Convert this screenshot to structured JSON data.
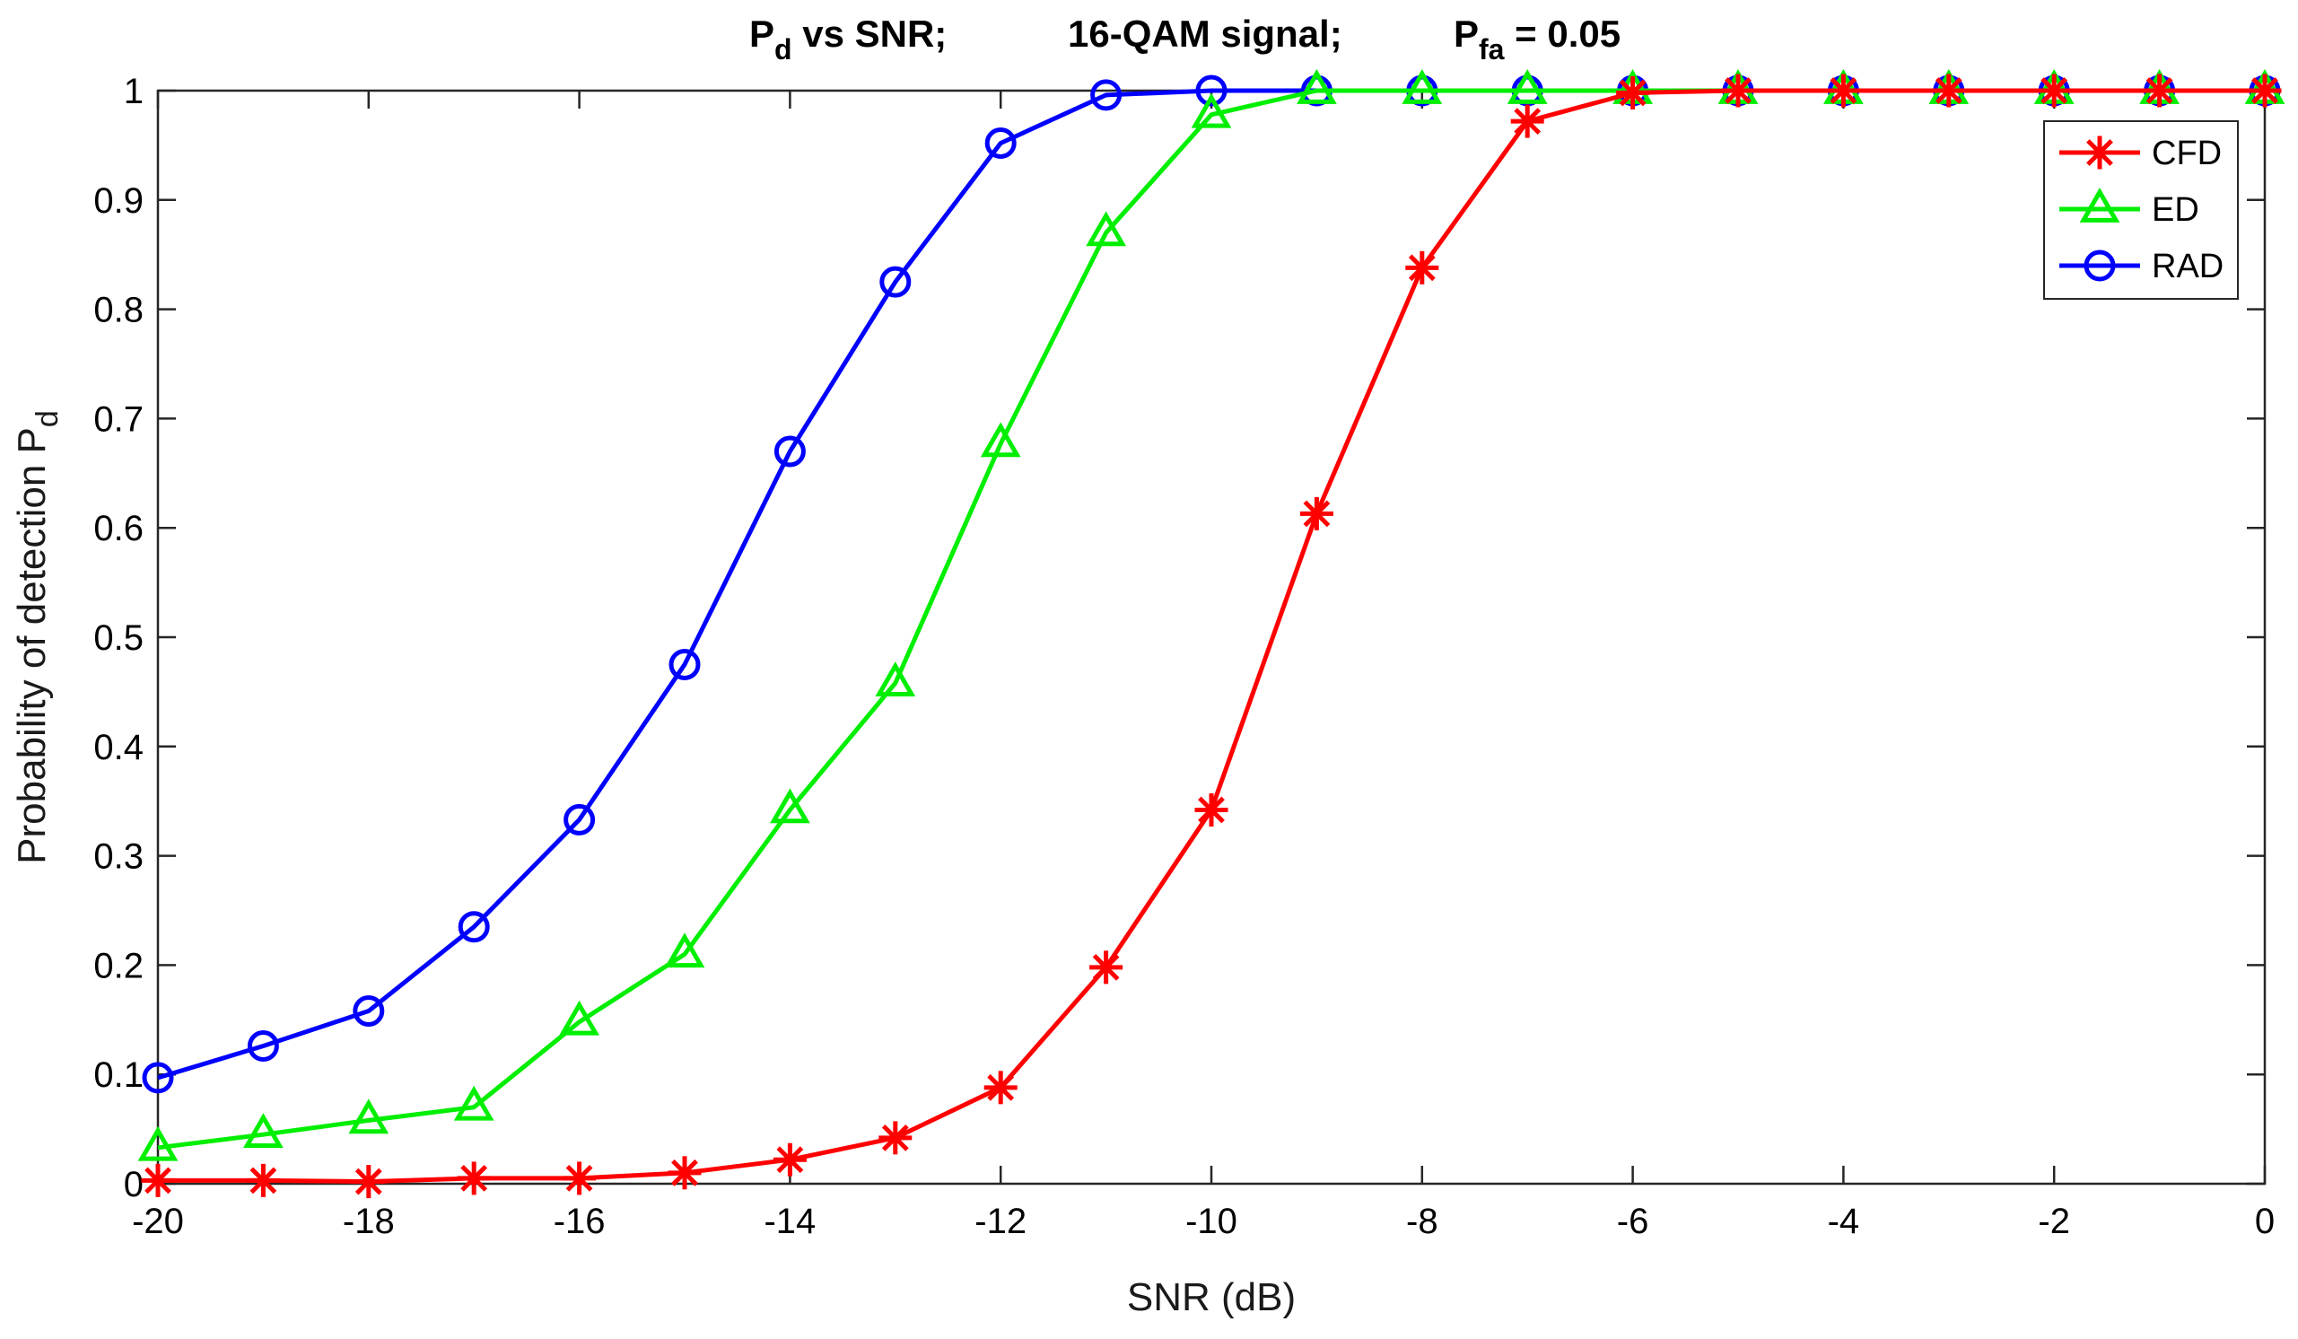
{
  "chart_data": {
    "type": "line",
    "title": {
      "part1_main": "P",
      "part1_sub": "d",
      "part1_rest": " vs SNR;",
      "part2": "16-QAM signal;",
      "part3_main": "P",
      "part3_sub": "fa",
      "part3_rest": " = 0.05"
    },
    "xlabel": "SNR (dB)",
    "ylabel_main": "Probability of detection P",
    "ylabel_sub": "d",
    "xlim": [
      -20,
      0
    ],
    "ylim": [
      0,
      1
    ],
    "xticks": [
      -20,
      -18,
      -16,
      -14,
      -12,
      -10,
      -8,
      -6,
      -4,
      -2,
      0
    ],
    "xtick_labels": [
      "-20",
      "-18",
      "-16",
      "-14",
      "-12",
      "-10",
      "-8",
      "-6",
      "-4",
      "-2",
      "0"
    ],
    "yticks": [
      0,
      0.1,
      0.2,
      0.3,
      0.4,
      0.5,
      0.6,
      0.7,
      0.8,
      0.9,
      1
    ],
    "ytick_labels": [
      "0",
      "0.1",
      "0.2",
      "0.3",
      "0.4",
      "0.5",
      "0.6",
      "0.7",
      "0.8",
      "0.9",
      "1"
    ],
    "grid": false,
    "legend_position": "top-right",
    "x": [
      -20,
      -19,
      -18,
      -17,
      -16,
      -15,
      -14,
      -13,
      -12,
      -11,
      -10,
      -9,
      -8,
      -7,
      -6,
      -5,
      -4,
      -3,
      -2,
      -1,
      0
    ],
    "series": [
      {
        "name": "CFD",
        "color": "#ff0000",
        "marker": "asterisk",
        "values": [
          0.003,
          0.003,
          0.002,
          0.005,
          0.005,
          0.01,
          0.022,
          0.042,
          0.088,
          0.198,
          0.342,
          0.613,
          0.838,
          0.972,
          0.998,
          1,
          1,
          1,
          1,
          1,
          1
        ]
      },
      {
        "name": "ED",
        "color": "#00ee00",
        "marker": "triangle",
        "values": [
          0.033,
          0.045,
          0.058,
          0.07,
          0.148,
          0.21,
          0.342,
          0.458,
          0.677,
          0.87,
          0.978,
          1,
          1,
          1,
          1,
          1,
          1,
          1,
          1,
          1,
          1
        ]
      },
      {
        "name": "RAD",
        "color": "#0000ff",
        "marker": "circle",
        "values": [
          0.097,
          0.126,
          0.158,
          0.235,
          0.333,
          0.475,
          0.67,
          0.825,
          0.952,
          0.996,
          1,
          1,
          1,
          1,
          1,
          1,
          1,
          1,
          1,
          1,
          1
        ]
      }
    ]
  }
}
